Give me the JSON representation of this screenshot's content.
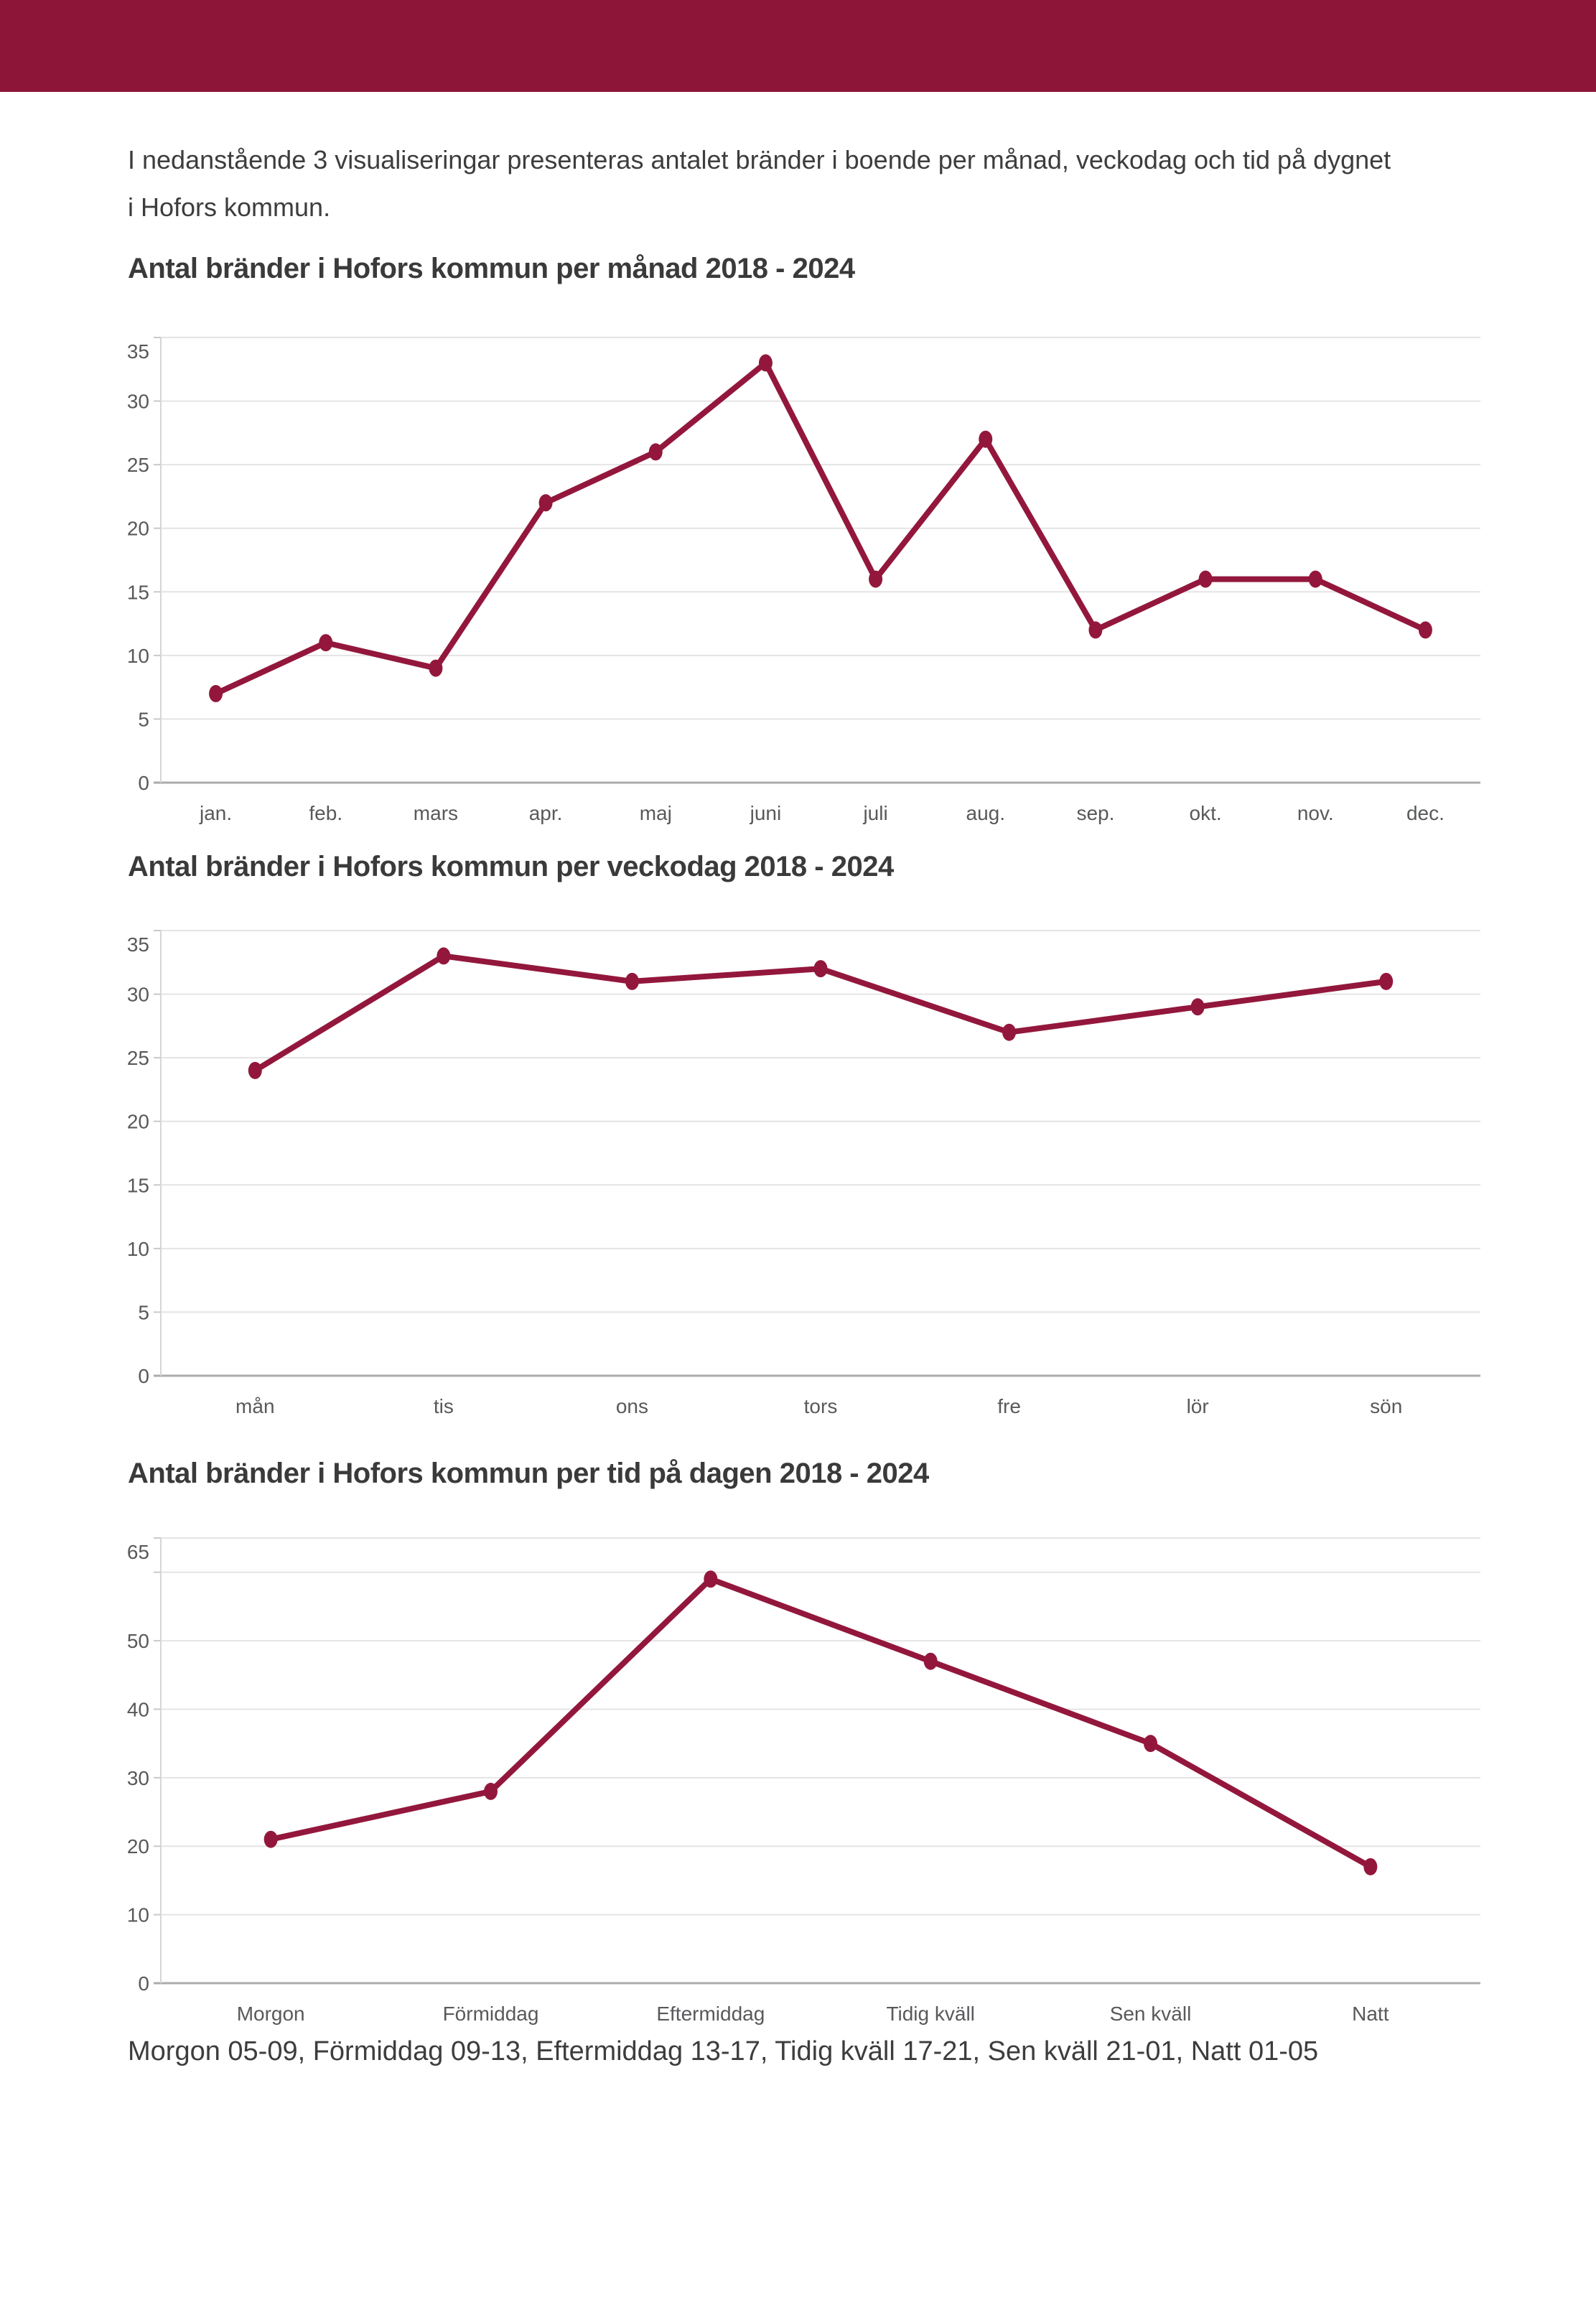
{
  "page": {
    "banner": {
      "color": "#8C1538"
    },
    "intro": {
      "line1": "I nedanstående 3 visualiseringar presenteras antalet bränder i boende per månad, veckodag och tid på dygnet",
      "line2": "i Hofors kommun."
    },
    "footnote": "Morgon 05-09, Förmiddag 09-13, Eftermiddag 13-17, Tidig kväll 17-21, Sen kväll 21-01, Natt 01-05",
    "text_color": "#3D3D3D"
  },
  "chart_data": [
    {
      "type": "line",
      "title": "Antal bränder i Hofors kommun per månad 2018 - 2024",
      "categories": [
        "jan.",
        "feb.",
        "mars",
        "apr.",
        "maj",
        "juni",
        "juli",
        "aug.",
        "sep.",
        "okt.",
        "nov.",
        "dec."
      ],
      "values": [
        7,
        11,
        9,
        22,
        26,
        33,
        16,
        27,
        12,
        16,
        16,
        12
      ],
      "xlabel": "",
      "ylabel": "",
      "ylim": [
        0,
        35
      ],
      "yticks": [
        0,
        5,
        10,
        15,
        20,
        25,
        30,
        35
      ],
      "gridlines": [
        0,
        5,
        10,
        15,
        20,
        25,
        30,
        35
      ],
      "grid": true,
      "legend": "none",
      "line_color": "#93173C",
      "point_color": "#93173C",
      "grid_color": "#E4E4E4",
      "zero_axis_color": "#ABABAB",
      "axis_line_color": "#D6D6D6",
      "tick_text_color": "#58595B"
    },
    {
      "type": "line",
      "title": "Antal bränder i Hofors kommun per veckodag 2018 - 2024",
      "categories": [
        "mån",
        "tis",
        "ons",
        "tors",
        "fre",
        "lör",
        "sön"
      ],
      "values": [
        24,
        33,
        31,
        32,
        27,
        29,
        31
      ],
      "xlabel": "",
      "ylabel": "",
      "ylim": [
        0,
        35
      ],
      "yticks": [
        0,
        5,
        10,
        15,
        20,
        25,
        30,
        35
      ],
      "gridlines": [
        0,
        5,
        10,
        15,
        20,
        25,
        30,
        35
      ],
      "grid": true,
      "legend": "none",
      "line_color": "#93173C",
      "point_color": "#93173C",
      "grid_color": "#E4E4E4",
      "zero_axis_color": "#ABABAB",
      "axis_line_color": "#D6D6D6",
      "tick_text_color": "#58595B"
    },
    {
      "type": "line",
      "title": "Antal bränder i Hofors kommun per tid på dagen 2018 - 2024",
      "categories": [
        "Morgon",
        "Förmiddag",
        "Eftermiddag",
        "Tidig kväll",
        "Sen kväll",
        "Natt"
      ],
      "values": [
        21,
        28,
        59,
        47,
        35,
        17
      ],
      "xlabel": "",
      "ylabel": "",
      "ylim": [
        0,
        65
      ],
      "yticks": [
        0,
        10,
        20,
        30,
        40,
        50,
        65
      ],
      "gridlines": [
        0,
        10,
        20,
        30,
        40,
        50,
        60,
        65
      ],
      "grid": true,
      "legend": "none",
      "line_color": "#93173C",
      "point_color": "#93173C",
      "grid_color": "#E4E4E4",
      "zero_axis_color": "#ABABAB",
      "axis_line_color": "#D6D6D6",
      "tick_text_color": "#58595B"
    }
  ]
}
